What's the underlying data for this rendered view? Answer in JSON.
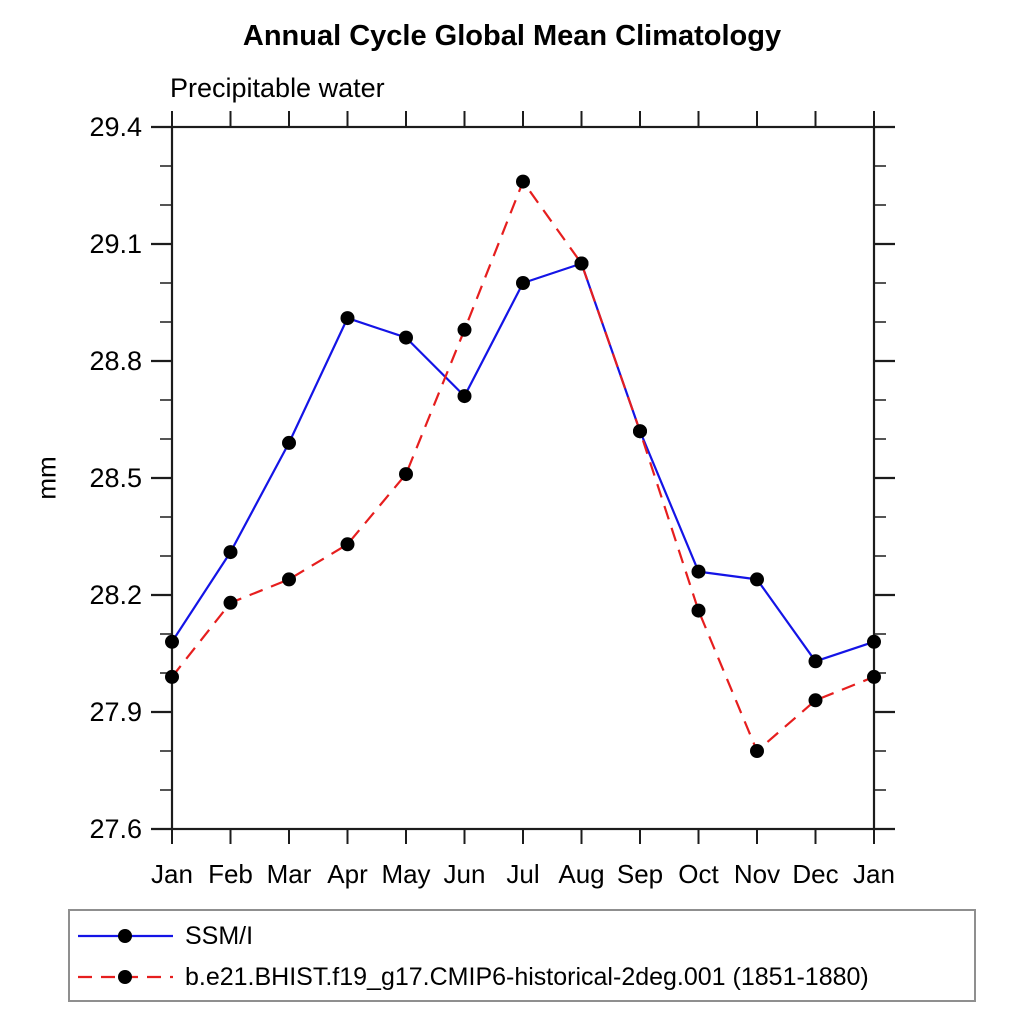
{
  "page": {
    "background": "#ffffff"
  },
  "chart": {
    "title": "Annual Cycle Global Mean Climatology",
    "subtitle": "Precipitable water",
    "y_axis_label": "mm"
  },
  "legend": {
    "position": "bottom",
    "items": [
      {
        "label": "SSM/I",
        "color": "#1414e6",
        "line_style": "solid",
        "marker": "filled-circle",
        "marker_color": "#000000"
      },
      {
        "label": "b.e21.BHIST.f19_g17.CMIP6-historical-2deg.001 (1851-1880)",
        "color": "#e61e1e",
        "line_style": "dashed",
        "marker": "filled-circle",
        "marker_color": "#000000"
      }
    ]
  },
  "chart_data": {
    "type": "line",
    "title": "Annual Cycle Global Mean Climatology",
    "subtitle": "Precipitable water",
    "xlabel": "",
    "ylabel": "mm",
    "categories": [
      "Jan",
      "Feb",
      "Mar",
      "Apr",
      "May",
      "Jun",
      "Jul",
      "Aug",
      "Sep",
      "Oct",
      "Nov",
      "Dec",
      "Jan"
    ],
    "series": [
      {
        "name": "SSM/I",
        "color": "#1414e6",
        "line_style": "solid",
        "marker": "filled-circle",
        "marker_color": "#000000",
        "values": [
          28.08,
          28.31,
          28.59,
          28.91,
          28.86,
          28.71,
          29.0,
          29.05,
          28.62,
          28.26,
          28.24,
          28.03,
          28.08
        ]
      },
      {
        "name": "b.e21.BHIST.f19_g17.CMIP6-historical-2deg.001 (1851-1880)",
        "color": "#e61e1e",
        "line_style": "dashed",
        "marker": "filled-circle",
        "marker_color": "#000000",
        "values": [
          27.99,
          28.18,
          28.24,
          28.33,
          28.51,
          28.88,
          29.26,
          29.05,
          28.62,
          28.16,
          27.8,
          27.93,
          27.99
        ]
      }
    ],
    "ylim": [
      27.6,
      29.4
    ],
    "y_major_ticks": [
      27.6,
      27.9,
      28.2,
      28.5,
      28.8,
      29.1,
      29.4
    ],
    "y_minor_step": 0.1,
    "y_tick_format": "one-decimal",
    "grid": false,
    "legend_position": "bottom"
  }
}
